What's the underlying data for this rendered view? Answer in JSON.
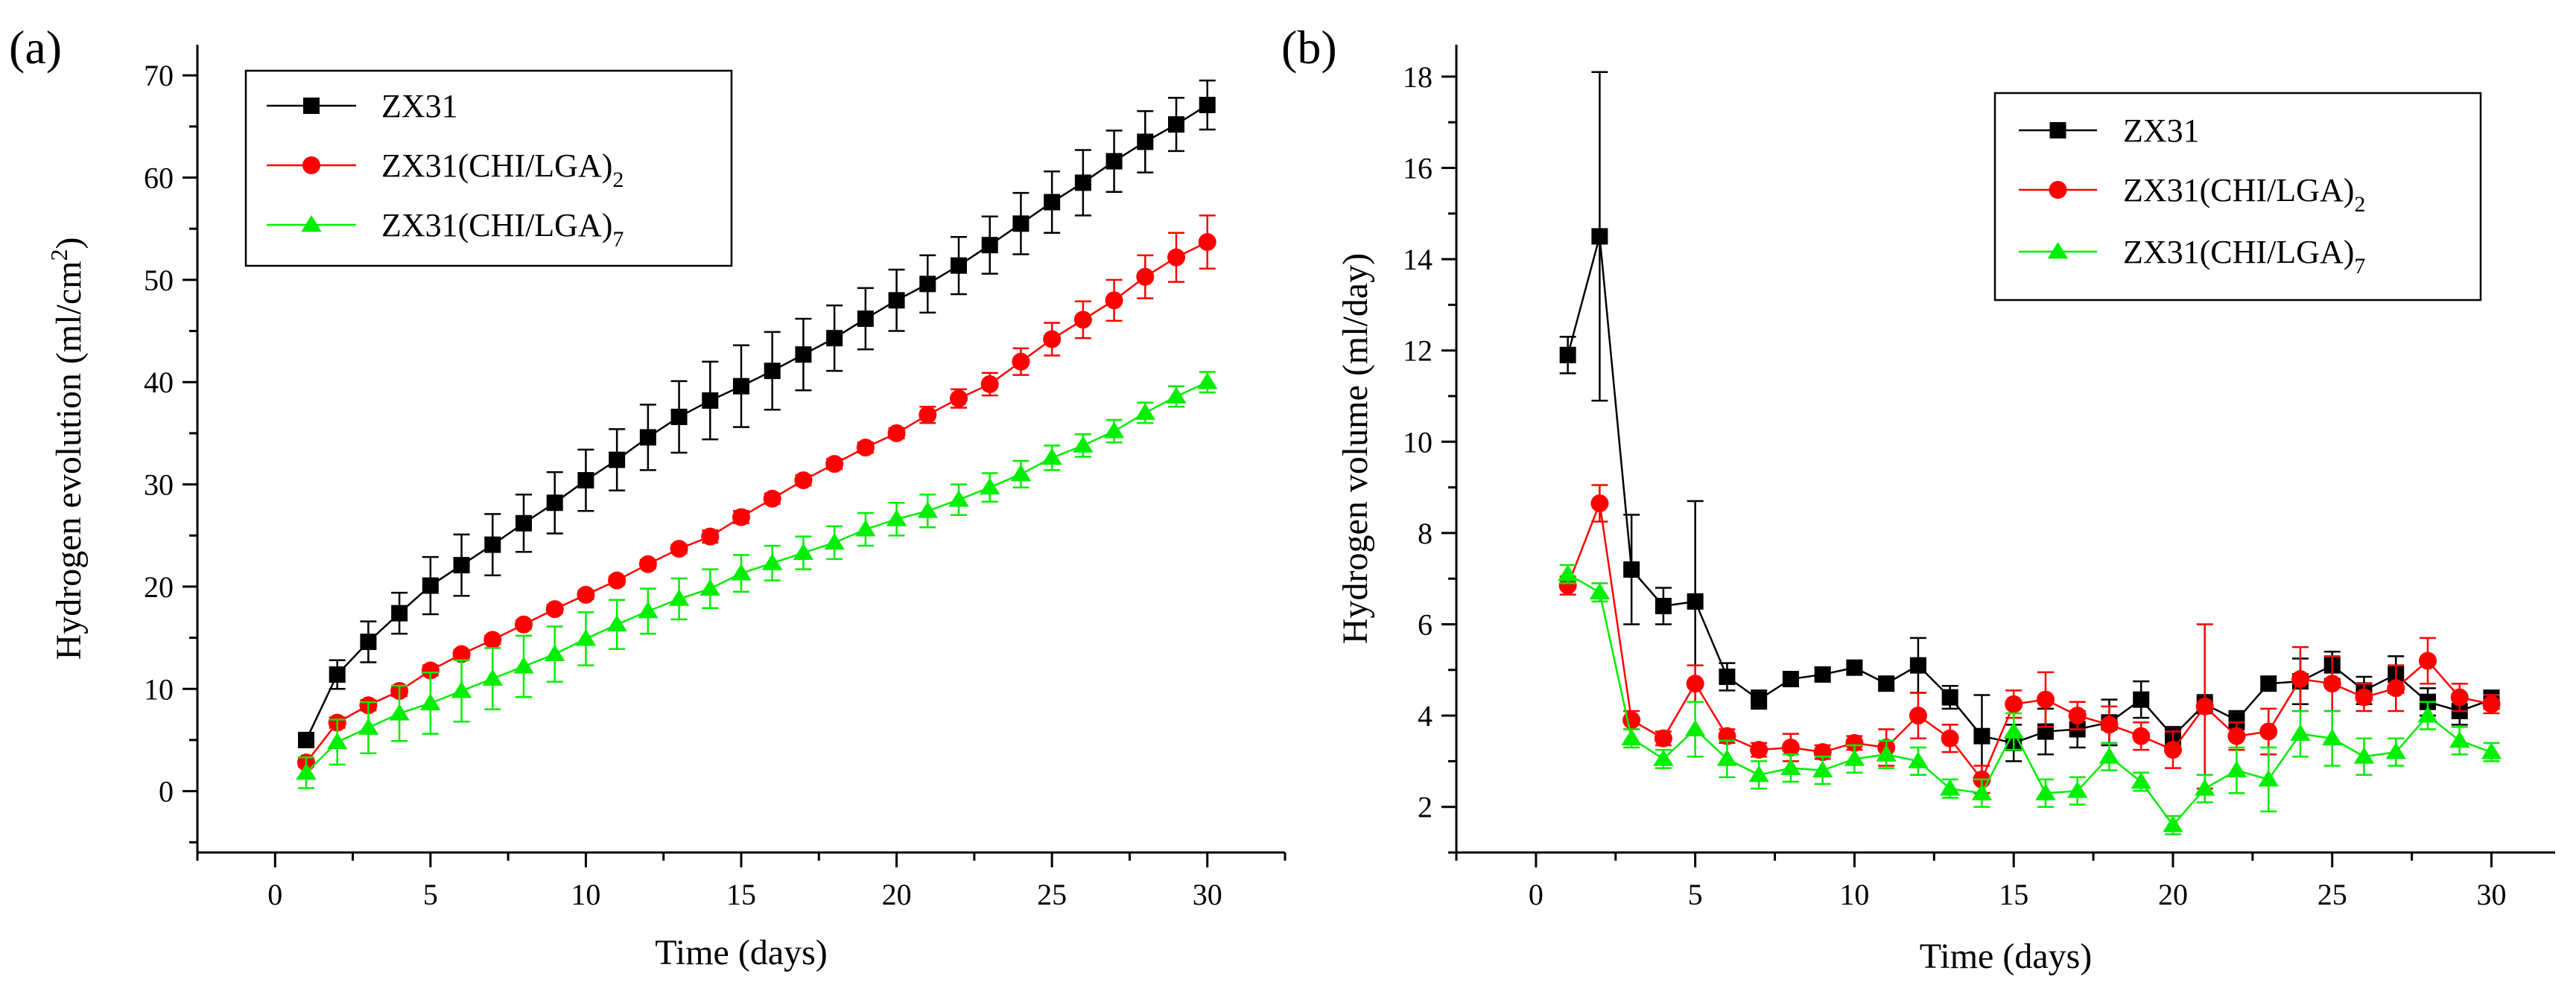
{
  "chart_data": [
    {
      "panel": "(a)",
      "type": "line",
      "xlabel": "Time (days)",
      "ylabel": "Hydrogen evolution (ml/cm",
      "ylabel_sup": "2",
      "ylabel_close": ")",
      "xlim": [
        -2.5,
        32.5
      ],
      "ylim": [
        -6,
        73
      ],
      "xticks": [
        0,
        5,
        10,
        15,
        20,
        25,
        30
      ],
      "yticks": [
        0,
        10,
        20,
        30,
        40,
        50,
        60,
        70
      ],
      "legend_position": "top-left",
      "x": [
        1,
        2,
        3,
        4,
        5,
        6,
        7,
        8,
        9,
        10,
        11,
        12,
        13,
        14,
        15,
        16,
        17,
        18,
        19,
        20,
        21,
        22,
        23,
        24,
        25,
        26,
        27,
        28,
        29,
        30
      ],
      "series": [
        {
          "name": "ZX31",
          "sub": "",
          "color": "#000000",
          "marker": "square",
          "values": [
            5.0,
            11.4,
            14.6,
            17.4,
            20.1,
            22.1,
            24.1,
            26.2,
            28.2,
            30.4,
            32.4,
            34.6,
            36.6,
            38.2,
            39.6,
            41.1,
            42.7,
            44.3,
            46.2,
            48.0,
            49.6,
            51.4,
            53.4,
            55.5,
            57.6,
            59.5,
            61.6,
            63.5,
            65.2,
            67.1
          ],
          "errors": [
            0.7,
            1.4,
            2.0,
            2.0,
            2.8,
            3.0,
            3.0,
            2.8,
            3.0,
            3.0,
            3.0,
            3.2,
            3.5,
            3.8,
            4.0,
            3.8,
            3.5,
            3.2,
            3.0,
            3.0,
            2.8,
            2.8,
            2.8,
            3.0,
            3.0,
            3.2,
            3.0,
            3.0,
            2.6,
            2.4
          ]
        },
        {
          "name": "ZX31(CHI/LGA)",
          "sub": "2",
          "color": "#ff0000",
          "marker": "circle",
          "values": [
            2.8,
            6.7,
            8.4,
            9.8,
            11.8,
            13.4,
            14.8,
            16.3,
            17.8,
            19.2,
            20.6,
            22.2,
            23.7,
            24.9,
            26.8,
            28.6,
            30.4,
            32.0,
            33.6,
            35.0,
            36.8,
            38.4,
            39.8,
            42.0,
            44.2,
            46.1,
            48.0,
            50.3,
            52.2,
            53.7
          ],
          "errors": [
            0.4,
            0.5,
            0.5,
            0.5,
            0.5,
            0.4,
            0.4,
            0.4,
            0.4,
            0.4,
            0.4,
            0.4,
            0.4,
            0.6,
            0.6,
            0.5,
            0.5,
            0.5,
            0.5,
            0.5,
            0.8,
            0.9,
            1.1,
            1.3,
            1.6,
            1.8,
            2.0,
            2.1,
            2.4,
            2.6
          ]
        },
        {
          "name": "ZX31(CHI/LGA)",
          "sub": "7",
          "color": "#00ee00",
          "marker": "triangle",
          "values": [
            1.8,
            4.8,
            6.2,
            7.6,
            8.6,
            9.8,
            11.0,
            12.2,
            13.4,
            14.9,
            16.3,
            17.6,
            18.8,
            19.8,
            21.3,
            22.3,
            23.3,
            24.3,
            25.6,
            26.6,
            27.4,
            28.5,
            29.7,
            31.0,
            32.6,
            33.8,
            35.2,
            37.0,
            38.6,
            40.0
          ],
          "errors": [
            1.5,
            2.2,
            2.5,
            2.7,
            3.0,
            3.0,
            3.0,
            3.0,
            2.7,
            2.6,
            2.4,
            2.2,
            2.0,
            1.9,
            1.8,
            1.7,
            1.6,
            1.6,
            1.6,
            1.6,
            1.6,
            1.5,
            1.4,
            1.3,
            1.2,
            1.1,
            1.1,
            1.0,
            1.0,
            1.0
          ]
        }
      ]
    },
    {
      "panel": "(b)",
      "type": "line",
      "xlabel": "Time (days)",
      "ylabel": "Hydrogen volume (ml/day)",
      "xlim": [
        -2.5,
        32
      ],
      "ylim": [
        1.0,
        18.7
      ],
      "xticks": [
        0,
        5,
        10,
        15,
        20,
        25,
        30
      ],
      "yticks": [
        2,
        4,
        6,
        8,
        10,
        12,
        14,
        16,
        18
      ],
      "legend_position": "top-right",
      "x": [
        1,
        2,
        3,
        4,
        5,
        6,
        7,
        8,
        9,
        10,
        11,
        12,
        13,
        14,
        15,
        16,
        17,
        18,
        19,
        20,
        21,
        22,
        23,
        24,
        25,
        26,
        27,
        28,
        29,
        30
      ],
      "series": [
        {
          "name": "ZX31",
          "sub": "",
          "color": "#000000",
          "marker": "square",
          "values": [
            11.9,
            14.5,
            7.2,
            6.4,
            6.5,
            4.85,
            4.35,
            4.8,
            4.9,
            5.05,
            4.7,
            5.1,
            4.4,
            3.55,
            3.4,
            3.65,
            3.7,
            3.85,
            4.35,
            3.55,
            4.25,
            3.9,
            4.7,
            4.75,
            5.1,
            4.55,
            4.9,
            4.3,
            4.1,
            4.35
          ],
          "errors": [
            0.4,
            3.6,
            1.2,
            0.4,
            2.2,
            0.3,
            0.2,
            0.15,
            0.15,
            0.15,
            0.15,
            0.6,
            0.25,
            0.9,
            0.4,
            0.5,
            0.4,
            0.5,
            0.4,
            0.2,
            0.2,
            0.2,
            0.15,
            0.5,
            0.3,
            0.3,
            0.4,
            0.3,
            0.3,
            0.2
          ]
        },
        {
          "name": "ZX31(CHI/LGA)",
          "sub": "2",
          "color": "#ff0000",
          "marker": "circle",
          "values": [
            6.85,
            8.65,
            3.9,
            3.5,
            4.7,
            3.55,
            3.25,
            3.3,
            3.2,
            3.4,
            3.3,
            4.0,
            3.5,
            2.6,
            4.25,
            4.35,
            4.0,
            3.8,
            3.55,
            3.25,
            4.2,
            3.55,
            3.65,
            4.8,
            4.7,
            4.4,
            4.6,
            5.2,
            4.4,
            4.25
          ],
          "errors": [
            0.2,
            0.4,
            0.2,
            0.15,
            0.4,
            0.15,
            0.15,
            0.3,
            0.15,
            0.15,
            0.4,
            0.5,
            0.3,
            0.3,
            0.3,
            0.6,
            0.3,
            0.4,
            0.3,
            0.4,
            1.8,
            0.3,
            0.5,
            0.7,
            0.6,
            0.3,
            0.5,
            0.5,
            0.3,
            0.2
          ]
        },
        {
          "name": "ZX31(CHI/LGA)",
          "sub": "7",
          "color": "#00ee00",
          "marker": "triangle",
          "values": [
            7.1,
            6.7,
            3.5,
            3.05,
            3.7,
            3.05,
            2.7,
            2.85,
            2.8,
            3.05,
            3.15,
            3.0,
            2.4,
            2.3,
            3.65,
            2.3,
            2.35,
            3.1,
            2.55,
            1.6,
            2.4,
            2.8,
            2.6,
            3.6,
            3.5,
            3.1,
            3.2,
            4.0,
            3.45,
            3.2
          ],
          "errors": [
            0.2,
            0.2,
            0.2,
            0.2,
            0.6,
            0.4,
            0.3,
            0.3,
            0.3,
            0.3,
            0.3,
            0.3,
            0.2,
            0.3,
            0.4,
            0.3,
            0.3,
            0.3,
            0.2,
            0.2,
            0.3,
            0.5,
            0.7,
            0.5,
            0.6,
            0.4,
            0.3,
            0.3,
            0.3,
            0.2
          ]
        }
      ]
    }
  ]
}
